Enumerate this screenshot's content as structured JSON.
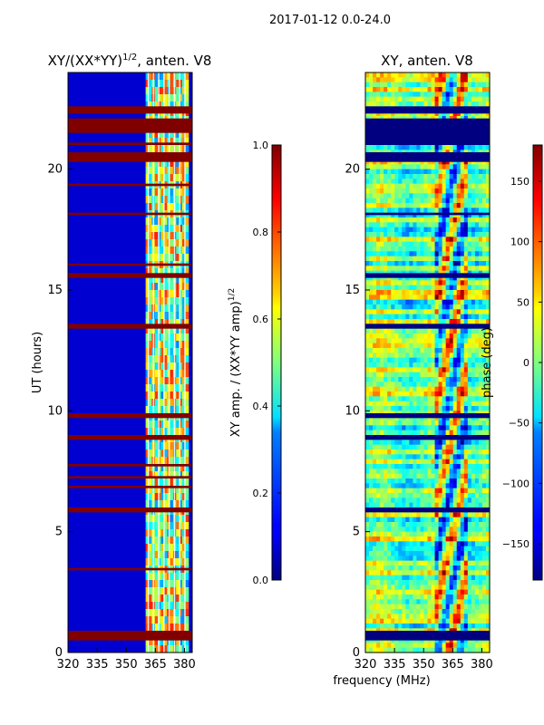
{
  "figure": {
    "suptitle": "2017-01-12 0.0-24.0",
    "shared_xlabel": "frequency (MHz)"
  },
  "chart_data": [
    {
      "type": "heatmap",
      "title": "XY/(XX*YY)^{1/2}, anten. V8",
      "title_main": "XY/(XX*YY)",
      "title_sup": "1/2",
      "title_tail": ", anten. V8",
      "xlabel": "frequency (MHz)",
      "ylabel": "UT (hours)",
      "xlim": [
        320,
        384
      ],
      "ylim": [
        0,
        24
      ],
      "xticks": [
        320,
        335,
        350,
        365,
        380
      ],
      "yticks": [
        0,
        5,
        10,
        15,
        20
      ],
      "colormap": "jet",
      "colorbar": {
        "label": "XY amp. / (XX*YY amp)^{1/2}",
        "label_main": "XY amp. / (XX*YY amp)",
        "label_sup": "1/2",
        "vmin": 0.0,
        "vmax": 1.0,
        "ticks": [
          0.0,
          0.2,
          0.4,
          0.6,
          0.8,
          1.0
        ],
        "tick_labels": [
          "0.0",
          "0.2",
          "0.4",
          "0.6",
          "0.8",
          "1.0"
        ]
      },
      "background_value": 0.08,
      "active_band_mhz": [
        360,
        382
      ],
      "active_band_value": 0.55,
      "flagged_bands_hours": [
        [
          0.5,
          0.9
        ],
        [
          3.4,
          3.5
        ],
        [
          5.8,
          6.0
        ],
        [
          6.8,
          6.9
        ],
        [
          7.2,
          7.3
        ],
        [
          7.7,
          7.8
        ],
        [
          8.8,
          9.0
        ],
        [
          9.7,
          9.9
        ],
        [
          13.4,
          13.6
        ],
        [
          15.5,
          15.7
        ],
        [
          16.0,
          16.1
        ],
        [
          18.1,
          18.2
        ],
        [
          19.3,
          19.4
        ],
        [
          20.3,
          20.7
        ],
        [
          21.0,
          21.1
        ],
        [
          21.5,
          22.1
        ],
        [
          22.3,
          22.6
        ]
      ],
      "flag_value": 1.0
    },
    {
      "type": "heatmap",
      "title": "XY, anten. V8",
      "xlabel": "frequency (MHz)",
      "ylabel": "",
      "xlim": [
        320,
        384
      ],
      "ylim": [
        0,
        24
      ],
      "xticks": [
        320,
        335,
        350,
        365,
        380
      ],
      "yticks": [
        0,
        5,
        10,
        15,
        20
      ],
      "colormap": "jet",
      "colorbar": {
        "label": "phase (deg)",
        "vmin": -180,
        "vmax": 180,
        "ticks": [
          -150,
          -100,
          -50,
          0,
          50,
          100,
          150
        ],
        "tick_labels": [
          "−150",
          "−100",
          "−50",
          "0",
          "50",
          "100",
          "150"
        ]
      },
      "flagged_bands_hours": [
        [
          0.5,
          0.9
        ],
        [
          5.8,
          6.0
        ],
        [
          8.8,
          9.0
        ],
        [
          9.7,
          9.9
        ],
        [
          13.4,
          13.6
        ],
        [
          15.5,
          15.7
        ],
        [
          18.1,
          18.2
        ],
        [
          20.3,
          20.7
        ],
        [
          21.0,
          22.1
        ],
        [
          22.3,
          22.6
        ]
      ],
      "flag_value": -180
    }
  ]
}
